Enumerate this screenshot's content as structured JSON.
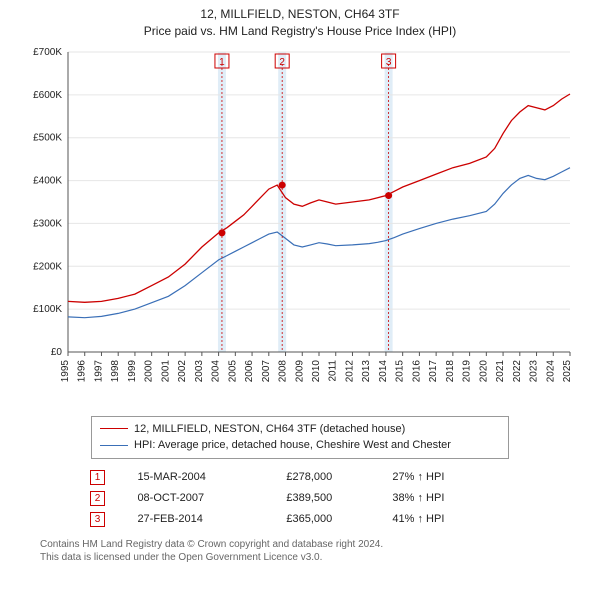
{
  "title": {
    "line1": "12, MILLFIELD, NESTON, CH64 3TF",
    "line2": "Price paid vs. HM Land Registry's House Price Index (HPI)"
  },
  "chart": {
    "background_color": "#ffffff",
    "plot_bg": "#ffffff",
    "grid_color": "#e6e6e6",
    "axis_color": "#555555",
    "xlim": [
      1995,
      2025
    ],
    "ylim": [
      0,
      700000
    ],
    "ytick_step": 100000,
    "ytick_labels": [
      "£0",
      "£100K",
      "£200K",
      "£300K",
      "£400K",
      "£500K",
      "£600K",
      "£700K"
    ],
    "x_ticks": [
      1995,
      1996,
      1997,
      1998,
      1999,
      2000,
      2001,
      2002,
      2003,
      2004,
      2005,
      2006,
      2007,
      2008,
      2009,
      2010,
      2011,
      2012,
      2013,
      2014,
      2015,
      2016,
      2017,
      2018,
      2019,
      2020,
      2021,
      2022,
      2023,
      2024,
      2025
    ],
    "series": [
      {
        "key": "price_paid",
        "label": "12, MILLFIELD, NESTON, CH64 3TF (detached house)",
        "color": "#cc0000",
        "line_width": 1.3,
        "data": [
          [
            1995,
            118000
          ],
          [
            1996,
            116000
          ],
          [
            1997,
            118000
          ],
          [
            1998,
            125000
          ],
          [
            1999,
            135000
          ],
          [
            2000,
            155000
          ],
          [
            2001,
            175000
          ],
          [
            2002,
            205000
          ],
          [
            2003,
            245000
          ],
          [
            2004,
            278000
          ],
          [
            2004.5,
            290000
          ],
          [
            2005,
            305000
          ],
          [
            2005.5,
            320000
          ],
          [
            2006,
            340000
          ],
          [
            2006.5,
            360000
          ],
          [
            2007,
            380000
          ],
          [
            2007.5,
            389500
          ],
          [
            2008,
            360000
          ],
          [
            2008.5,
            345000
          ],
          [
            2009,
            340000
          ],
          [
            2009.5,
            348000
          ],
          [
            2010,
            355000
          ],
          [
            2010.5,
            350000
          ],
          [
            2011,
            345000
          ],
          [
            2012,
            350000
          ],
          [
            2013,
            355000
          ],
          [
            2013.5,
            360000
          ],
          [
            2014,
            365000
          ],
          [
            2014.5,
            375000
          ],
          [
            2015,
            385000
          ],
          [
            2016,
            400000
          ],
          [
            2017,
            415000
          ],
          [
            2018,
            430000
          ],
          [
            2019,
            440000
          ],
          [
            2020,
            455000
          ],
          [
            2020.5,
            475000
          ],
          [
            2021,
            510000
          ],
          [
            2021.5,
            540000
          ],
          [
            2022,
            560000
          ],
          [
            2022.5,
            575000
          ],
          [
            2023,
            570000
          ],
          [
            2023.5,
            565000
          ],
          [
            2024,
            575000
          ],
          [
            2024.5,
            590000
          ],
          [
            2025,
            602000
          ]
        ]
      },
      {
        "key": "hpi",
        "label": "HPI: Average price, detached house, Cheshire West and Chester",
        "color": "#3a6fb7",
        "line_width": 1.2,
        "data": [
          [
            1995,
            82000
          ],
          [
            1996,
            80000
          ],
          [
            1997,
            83000
          ],
          [
            1998,
            90000
          ],
          [
            1999,
            100000
          ],
          [
            2000,
            115000
          ],
          [
            2001,
            130000
          ],
          [
            2002,
            155000
          ],
          [
            2003,
            185000
          ],
          [
            2004,
            215000
          ],
          [
            2004.5,
            225000
          ],
          [
            2005,
            235000
          ],
          [
            2005.5,
            245000
          ],
          [
            2006,
            255000
          ],
          [
            2006.5,
            265000
          ],
          [
            2007,
            275000
          ],
          [
            2007.5,
            280000
          ],
          [
            2008,
            265000
          ],
          [
            2008.5,
            250000
          ],
          [
            2009,
            245000
          ],
          [
            2009.5,
            250000
          ],
          [
            2010,
            255000
          ],
          [
            2010.5,
            252000
          ],
          [
            2011,
            248000
          ],
          [
            2012,
            250000
          ],
          [
            2013,
            253000
          ],
          [
            2013.5,
            256000
          ],
          [
            2014,
            260000
          ],
          [
            2014.5,
            267000
          ],
          [
            2015,
            275000
          ],
          [
            2016,
            288000
          ],
          [
            2017,
            300000
          ],
          [
            2018,
            310000
          ],
          [
            2019,
            318000
          ],
          [
            2020,
            328000
          ],
          [
            2020.5,
            345000
          ],
          [
            2021,
            370000
          ],
          [
            2021.5,
            390000
          ],
          [
            2022,
            405000
          ],
          [
            2022.5,
            412000
          ],
          [
            2023,
            405000
          ],
          [
            2023.5,
            402000
          ],
          [
            2024,
            410000
          ],
          [
            2024.5,
            420000
          ],
          [
            2025,
            430000
          ]
        ]
      }
    ],
    "sale_markers": [
      {
        "num": "1",
        "x": 2004.2,
        "y": 278000
      },
      {
        "num": "2",
        "x": 2007.8,
        "y": 389500
      },
      {
        "num": "3",
        "x": 2014.16,
        "y": 365000
      }
    ],
    "marker_dot_color": "#cc0000",
    "marker_dot_radius": 3.5,
    "marker_band_color": "#e0edf7",
    "flag_y": 80
  },
  "legend": {
    "rows": [
      {
        "color": "#cc0000",
        "text": "12, MILLFIELD, NESTON, CH64 3TF (detached house)"
      },
      {
        "color": "#3a6fb7",
        "text": "HPI: Average price, detached house, Cheshire West and Chester"
      }
    ]
  },
  "marker_table": {
    "rows": [
      {
        "num": "1",
        "date": "15-MAR-2004",
        "price": "£278,000",
        "pct": "27% ↑ HPI"
      },
      {
        "num": "2",
        "date": "08-OCT-2007",
        "price": "£389,500",
        "pct": "38% ↑ HPI"
      },
      {
        "num": "3",
        "date": "27-FEB-2014",
        "price": "£365,000",
        "pct": "41% ↑ HPI"
      }
    ]
  },
  "footnote": {
    "line1": "Contains HM Land Registry data © Crown copyright and database right 2024.",
    "line2": "This data is licensed under the Open Government Licence v3.0."
  }
}
